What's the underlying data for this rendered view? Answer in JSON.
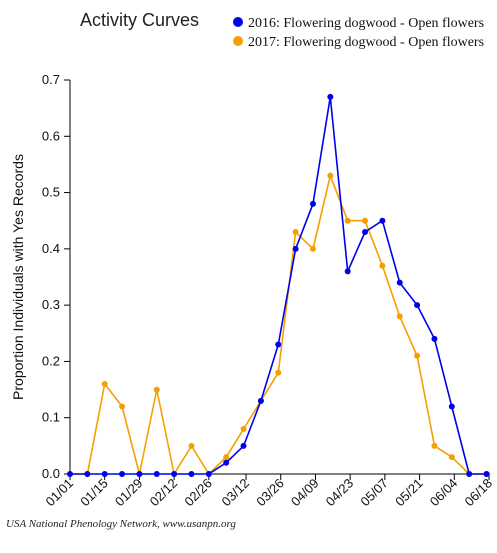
{
  "chart_data": {
    "type": "line",
    "title": "Activity Curves",
    "xlabel": "",
    "ylabel": "Proportion Individuals with Yes Records",
    "ylim": [
      0,
      0.7
    ],
    "y_ticks": [
      0,
      0.1,
      0.2,
      0.3,
      0.4,
      0.5,
      0.6,
      0.7
    ],
    "x_tick_labels": [
      "01/01",
      "01/15",
      "01/29",
      "02/12",
      "02/26",
      "03/12",
      "03/26",
      "04/09",
      "04/23",
      "05/07",
      "05/21",
      "06/04",
      "06/18"
    ],
    "grid": false,
    "legend_position": "top-right",
    "series": [
      {
        "name": "2016: Flowering dogwood - Open flowers",
        "color": "#0000ee",
        "points": [
          {
            "x": "01/01",
            "y": 0
          },
          {
            "x": "01/08",
            "y": 0
          },
          {
            "x": "01/15",
            "y": 0
          },
          {
            "x": "01/22",
            "y": 0
          },
          {
            "x": "01/29",
            "y": 0
          },
          {
            "x": "02/05",
            "y": 0
          },
          {
            "x": "02/12",
            "y": 0
          },
          {
            "x": "02/19",
            "y": 0
          },
          {
            "x": "02/26",
            "y": 0
          },
          {
            "x": "03/04",
            "y": 0.02
          },
          {
            "x": "03/11",
            "y": 0.05
          },
          {
            "x": "03/18",
            "y": 0.13
          },
          {
            "x": "03/25",
            "y": 0.23
          },
          {
            "x": "04/01",
            "y": 0.4
          },
          {
            "x": "04/08",
            "y": 0.48
          },
          {
            "x": "04/15",
            "y": 0.67
          },
          {
            "x": "04/22",
            "y": 0.36
          },
          {
            "x": "04/29",
            "y": 0.43
          },
          {
            "x": "05/06",
            "y": 0.45
          },
          {
            "x": "05/13",
            "y": 0.34
          },
          {
            "x": "05/20",
            "y": 0.3
          },
          {
            "x": "05/27",
            "y": 0.24
          },
          {
            "x": "06/03",
            "y": 0.12
          },
          {
            "x": "06/10",
            "y": 0
          },
          {
            "x": "06/17",
            "y": 0
          }
        ]
      },
      {
        "name": "2017: Flowering dogwood - Open flowers",
        "color": "#f5a000",
        "points": [
          {
            "x": "01/01",
            "y": 0
          },
          {
            "x": "01/08",
            "y": 0
          },
          {
            "x": "01/15",
            "y": 0.16
          },
          {
            "x": "01/22",
            "y": 0.12
          },
          {
            "x": "01/29",
            "y": 0
          },
          {
            "x": "02/05",
            "y": 0.15
          },
          {
            "x": "02/12",
            "y": 0
          },
          {
            "x": "02/19",
            "y": 0.05
          },
          {
            "x": "02/26",
            "y": 0
          },
          {
            "x": "03/04",
            "y": 0.03
          },
          {
            "x": "03/11",
            "y": 0.08
          },
          {
            "x": "03/18",
            "y": 0.13
          },
          {
            "x": "03/25",
            "y": 0.18
          },
          {
            "x": "04/01",
            "y": 0.43
          },
          {
            "x": "04/08",
            "y": 0.4
          },
          {
            "x": "04/15",
            "y": 0.53
          },
          {
            "x": "04/22",
            "y": 0.45
          },
          {
            "x": "04/29",
            "y": 0.45
          },
          {
            "x": "05/06",
            "y": 0.37
          },
          {
            "x": "05/13",
            "y": 0.28
          },
          {
            "x": "05/20",
            "y": 0.21
          },
          {
            "x": "05/27",
            "y": 0.05
          },
          {
            "x": "06/03",
            "y": 0.03
          },
          {
            "x": "06/10",
            "y": 0
          },
          {
            "x": "06/17",
            "y": 0
          }
        ]
      }
    ]
  },
  "credit": "USA National Phenology Network, www.usanpn.org"
}
